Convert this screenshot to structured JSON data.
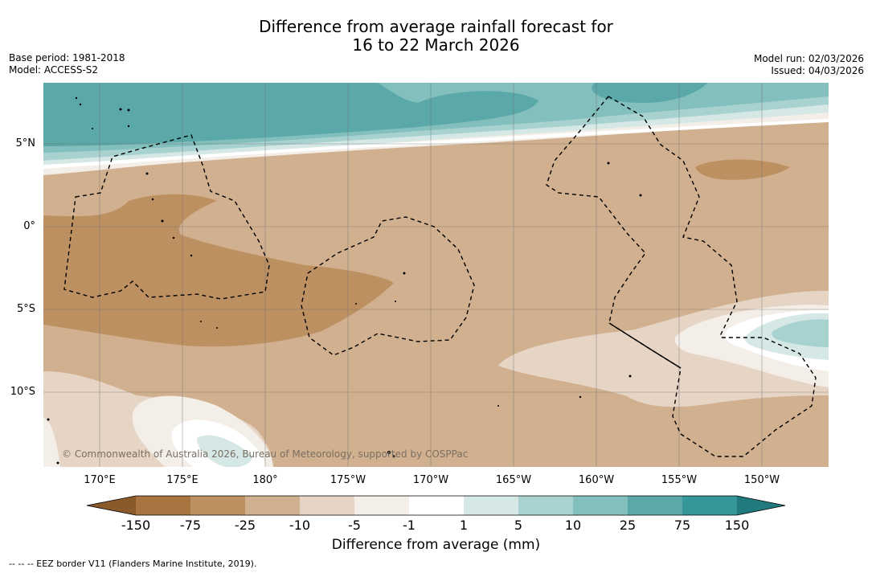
{
  "title": {
    "line1": "Difference from average rainfall forecast for",
    "line2": "16 to 22 March 2026"
  },
  "meta_left": {
    "base_period": "Base period: 1981-2018",
    "model": "Model: ACCESS-S2"
  },
  "meta_right": {
    "model_run": "Model run: 02/03/2026",
    "issued": "Issued: 04/03/2026"
  },
  "copyright": "© Commonwealth of Australia 2026, Bureau of Meteorology, supported by COSPPac",
  "lon_labels": [
    "170°E",
    "175°E",
    "180°",
    "175°W",
    "170°W",
    "165°W",
    "160°W",
    "155°W",
    "150°W"
  ],
  "lat_labels": [
    "5°N",
    "0°",
    "5°S",
    "10°S"
  ],
  "colorbar": {
    "title": "Difference from average (mm)",
    "labels": [
      "-150",
      "-75",
      "-25",
      "-10",
      "-5",
      "-1",
      "1",
      "5",
      "10",
      "25",
      "75",
      "150"
    ],
    "colors": [
      "#8b5a2b",
      "#a87440",
      "#bd9062",
      "#d1b08f",
      "#e6d4c4",
      "#f3eee8",
      "#ffffff",
      "#d5e8e6",
      "#a8d2d0",
      "#82bfbd",
      "#5aa8a8",
      "#35979a",
      "#207a7e"
    ]
  },
  "footer": "--  --  -- EEZ border V11 (Flanders Marine Institute, 2019)."
}
